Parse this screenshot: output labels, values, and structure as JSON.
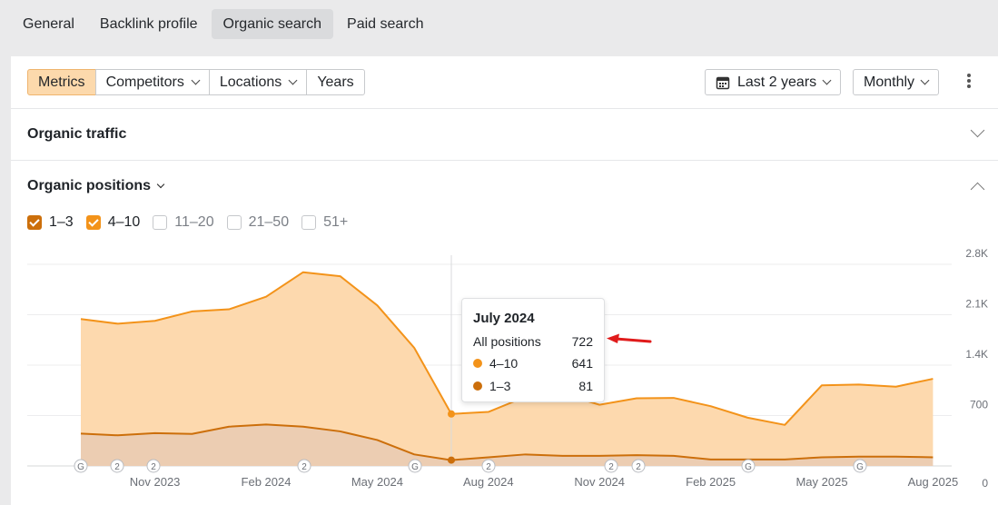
{
  "top_tabs": [
    {
      "label": "General",
      "active": false
    },
    {
      "label": "Backlink profile",
      "active": false
    },
    {
      "label": "Organic search",
      "active": true
    },
    {
      "label": "Paid search",
      "active": false
    }
  ],
  "toolbar": {
    "metrics": "Metrics",
    "competitors": "Competitors",
    "locations": "Locations",
    "years": "Years",
    "date_range": "Last 2 years",
    "granularity": "Monthly"
  },
  "sections": {
    "organic_traffic": "Organic traffic",
    "organic_positions": "Organic positions"
  },
  "checkboxes": [
    {
      "label": "1–3",
      "checked": true,
      "color": "#cc6f0b"
    },
    {
      "label": "4–10",
      "checked": true,
      "color": "#f3931a"
    },
    {
      "label": "11–20",
      "checked": false,
      "color": "#c6c8cb"
    },
    {
      "label": "21–50",
      "checked": false,
      "color": "#c6c8cb"
    },
    {
      "label": "51+",
      "checked": false,
      "color": "#c6c8cb"
    }
  ],
  "tooltip": {
    "title": "July 2024",
    "all_label": "All positions",
    "all_value": "722",
    "rows": [
      {
        "label": "4–10",
        "value": "641",
        "color": "#f3931a"
      },
      {
        "label": "1–3",
        "value": "81",
        "color": "#cc6f0b"
      }
    ]
  },
  "chart_data": {
    "type": "area",
    "stacked": true,
    "x": [
      "Sep 2023",
      "Oct 2023",
      "Nov 2023",
      "Dec 2023",
      "Jan 2024",
      "Feb 2024",
      "Mar 2024",
      "Apr 2024",
      "May 2024",
      "Jun 2024",
      "Jul 2024",
      "Aug 2024",
      "Sep 2024",
      "Oct 2024",
      "Nov 2024",
      "Dec 2024",
      "Jan 2025",
      "Feb 2025",
      "Mar 2025",
      "Apr 2025",
      "May 2025",
      "Jun 2025",
      "Jul 2025",
      "Aug 2025"
    ],
    "x_tick_labels": [
      "Nov 2023",
      "Feb 2024",
      "May 2024",
      "Aug 2024",
      "Nov 2024",
      "Feb 2025",
      "May 2025",
      "Aug 2025"
    ],
    "y_tick_labels": [
      "0",
      "700",
      "1.4K",
      "2.1K",
      "2.8K"
    ],
    "ylim": [
      0,
      2800
    ],
    "series": [
      {
        "name": "1–3",
        "color": "#cc6f0b",
        "fill": "#eccdb2",
        "values": [
          450,
          425,
          455,
          445,
          545,
          575,
          545,
          480,
          360,
          160,
          81,
          120,
          160,
          140,
          140,
          150,
          140,
          90,
          90,
          90,
          120,
          130,
          130,
          120
        ]
      },
      {
        "name": "4–10",
        "color": "#f3931a",
        "fill": "#fdd9ae",
        "values": [
          1590,
          1550,
          1560,
          1700,
          1630,
          1775,
          2145,
          2155,
          1870,
          1480,
          641,
          630,
          800,
          860,
          710,
          790,
          805,
          740,
          580,
          480,
          1000,
          1000,
          970,
          1090
        ]
      }
    ],
    "google_update_markers": [
      "G",
      "2",
      "2",
      "2",
      "G",
      "2",
      "2",
      "2",
      "G",
      "G"
    ]
  }
}
